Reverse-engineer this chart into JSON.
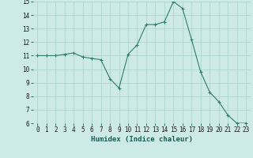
{
  "x": [
    0,
    1,
    2,
    3,
    4,
    5,
    6,
    7,
    8,
    9,
    10,
    11,
    12,
    13,
    14,
    15,
    16,
    17,
    18,
    19,
    20,
    21,
    22,
    23
  ],
  "y": [
    11.0,
    11.0,
    11.0,
    11.1,
    11.2,
    10.9,
    10.8,
    10.7,
    9.3,
    8.6,
    11.1,
    11.8,
    13.3,
    13.3,
    13.5,
    15.0,
    14.5,
    12.2,
    9.8,
    8.3,
    7.6,
    6.6,
    6.0,
    6.0
  ],
  "line_color": "#2e7d6e",
  "marker": "+",
  "marker_color": "#2e7d6e",
  "bg_color": "#ceeae6",
  "grid_color": "#aed4ce",
  "xlabel": "Humidex (Indice chaleur)",
  "xlim": [
    -0.5,
    23.5
  ],
  "ylim": [
    6,
    15
  ],
  "yticks": [
    6,
    7,
    8,
    9,
    10,
    11,
    12,
    13,
    14,
    15
  ],
  "xticks": [
    0,
    1,
    2,
    3,
    4,
    5,
    6,
    7,
    8,
    9,
    10,
    11,
    12,
    13,
    14,
    15,
    16,
    17,
    18,
    19,
    20,
    21,
    22,
    23
  ],
  "xtick_labels": [
    "0",
    "1",
    "2",
    "3",
    "4",
    "5",
    "6",
    "7",
    "8",
    "9",
    "10",
    "11",
    "12",
    "13",
    "14",
    "15",
    "16",
    "17",
    "18",
    "19",
    "20",
    "21",
    "22",
    "23"
  ],
  "label_fontsize": 6.5,
  "tick_fontsize": 5.5
}
